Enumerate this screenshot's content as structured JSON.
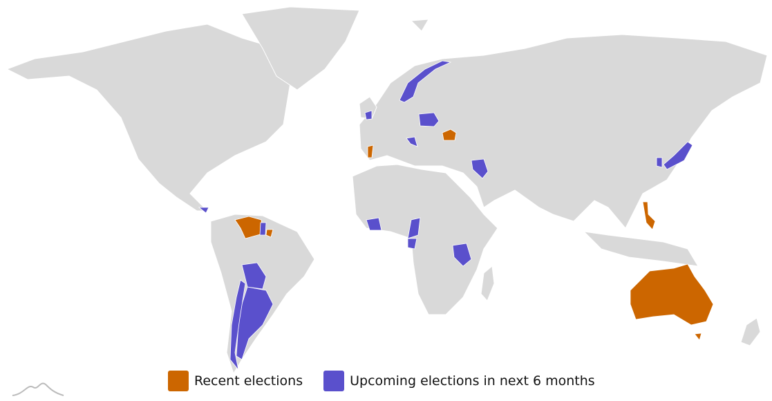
{
  "legend": {
    "items": [
      {
        "label": "Recent elections",
        "color": "#cc6600"
      },
      {
        "label": "Upcoming elections in next 6 months",
        "color": "#5a50cc"
      }
    ]
  }
}
